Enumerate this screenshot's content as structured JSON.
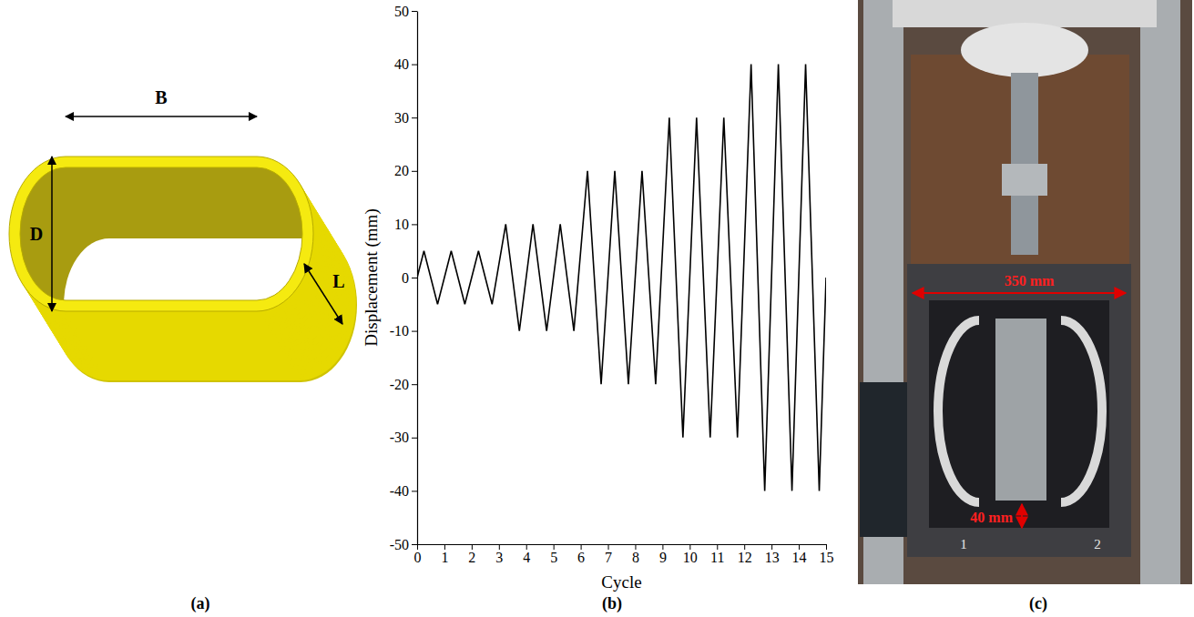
{
  "panel_labels": [
    "(a)",
    "(b)",
    "(c)"
  ],
  "diagram": {
    "dimensions": [
      "B",
      "D",
      "L"
    ]
  },
  "chart_data": {
    "type": "line",
    "xlabel": "Cycle",
    "ylabel": "Displacement (mm)",
    "color": "#000000",
    "x": [
      0,
      0.25,
      0.75,
      1.25,
      1.75,
      2.25,
      2.75,
      3.25,
      3.75,
      4.25,
      4.75,
      5.25,
      5.75,
      6.25,
      6.75,
      7.25,
      7.75,
      8.25,
      8.75,
      9.25,
      9.75,
      10.25,
      10.75,
      11.25,
      11.75,
      12.25,
      12.75,
      13.25,
      13.75,
      14.25,
      14.75,
      15
    ],
    "values": [
      0,
      5,
      -5,
      5,
      -5,
      5,
      -5,
      10,
      -10,
      10,
      -10,
      10,
      -10,
      20,
      -20,
      20,
      -20,
      20,
      -20,
      30,
      -30,
      30,
      -30,
      30,
      -30,
      40,
      -40,
      40,
      -40,
      40,
      -40,
      0
    ],
    "xlim": [
      0,
      15
    ],
    "xticks": [
      0,
      1,
      2,
      3,
      4,
      5,
      6,
      7,
      8,
      9,
      10,
      11,
      12,
      13,
      14,
      15
    ],
    "ylim": [
      -50,
      50
    ],
    "yticks": [
      -50,
      -40,
      -30,
      -20,
      -10,
      0,
      10,
      20,
      30,
      40,
      50
    ],
    "grid": false
  },
  "photo": {
    "annotations": [
      {
        "text": "350 mm"
      },
      {
        "text": "40 mm"
      }
    ],
    "markings": [
      "1",
      "2"
    ]
  }
}
